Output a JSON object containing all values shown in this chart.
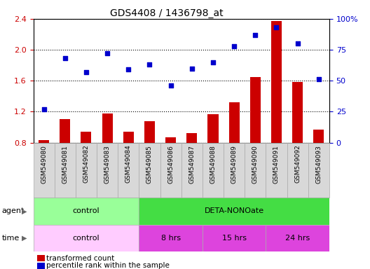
{
  "title": "GDS4408 / 1436798_at",
  "samples": [
    "GSM549080",
    "GSM549081",
    "GSM549082",
    "GSM549083",
    "GSM549084",
    "GSM549085",
    "GSM549086",
    "GSM549087",
    "GSM549088",
    "GSM549089",
    "GSM549090",
    "GSM549091",
    "GSM549092",
    "GSM549093"
  ],
  "bar_values": [
    0.83,
    1.1,
    0.94,
    1.18,
    0.94,
    1.08,
    0.87,
    0.92,
    1.17,
    1.32,
    1.65,
    2.37,
    1.58,
    0.97
  ],
  "scatter_values": [
    27,
    68,
    57,
    72,
    59,
    63,
    46,
    60,
    65,
    78,
    87,
    93,
    80,
    51
  ],
  "ylim_left": [
    0.8,
    2.4
  ],
  "ylim_right": [
    0,
    100
  ],
  "yticks_left": [
    0.8,
    1.2,
    1.6,
    2.0,
    2.4
  ],
  "yticks_right": [
    0,
    25,
    50,
    75,
    100
  ],
  "bar_color": "#cc0000",
  "scatter_color": "#0000cc",
  "agent_labels": [
    {
      "text": "control",
      "start": 0,
      "end": 5,
      "color": "#99ff99"
    },
    {
      "text": "DETA-NONOate",
      "start": 5,
      "end": 14,
      "color": "#44dd44"
    }
  ],
  "time_labels": [
    {
      "text": "control",
      "start": 0,
      "end": 5,
      "color": "#ffccff"
    },
    {
      "text": "8 hrs",
      "start": 5,
      "end": 8,
      "color": "#dd44dd"
    },
    {
      "text": "15 hrs",
      "start": 8,
      "end": 11,
      "color": "#dd44dd"
    },
    {
      "text": "24 hrs",
      "start": 11,
      "end": 14,
      "color": "#dd44dd"
    }
  ],
  "legend_bar_label": "transformed count",
  "legend_scatter_label": "percentile rank within the sample",
  "agent_row_label": "agent",
  "time_row_label": "time",
  "tick_label_color_left": "#cc0000",
  "tick_label_color_right": "#0000cc",
  "grid_color": "#000000",
  "bg_color": "#ffffff",
  "plot_bg_color": "#ffffff",
  "cell_bg_color": "#d8d8d8",
  "cell_edge_color": "#aaaaaa"
}
